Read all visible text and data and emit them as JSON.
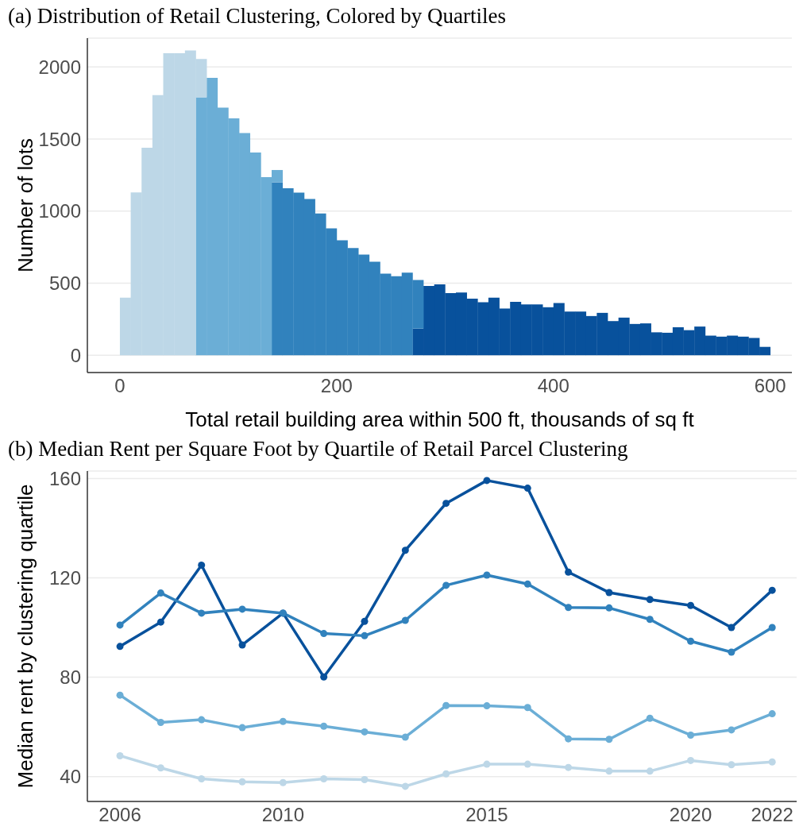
{
  "chart_data": [
    {
      "type": "bar",
      "title": "(a)  Distribution of Retail Clustering, Colored by Quartiles",
      "xlabel": "Total retail building area within 500 ft, thousands of sq ft",
      "ylabel": "Number of lots",
      "stacked": true,
      "x": [
        5,
        15,
        25,
        35,
        45,
        55,
        65,
        75,
        85,
        95,
        105,
        115,
        125,
        135,
        145,
        155,
        165,
        175,
        185,
        195,
        205,
        215,
        225,
        235,
        245,
        255,
        265,
        275,
        285,
        295,
        305,
        315,
        325,
        335,
        345,
        355,
        365,
        375,
        385,
        395,
        405,
        415,
        425,
        435,
        445,
        455,
        465,
        475,
        485,
        495,
        505,
        515,
        525,
        535,
        545,
        555,
        565,
        575,
        585,
        595
      ],
      "series": [
        {
          "color": "#08519c",
          "values": [
            0,
            0,
            0,
            0,
            0,
            0,
            0,
            0,
            0,
            0,
            0,
            0,
            0,
            0,
            0,
            0,
            0,
            0,
            0,
            0,
            0,
            0,
            0,
            0,
            0,
            0,
            0,
            185,
            480,
            491,
            431,
            435,
            393,
            368,
            400,
            324,
            371,
            353,
            353,
            333,
            362,
            303,
            303,
            272,
            294,
            237,
            261,
            217,
            221,
            159,
            156,
            194,
            174,
            199,
            136,
            129,
            136,
            129,
            120,
            58
          ]
        },
        {
          "color": "#3182bd",
          "values": [
            0,
            0,
            0,
            0,
            0,
            0,
            0,
            0,
            0,
            0,
            0,
            0,
            0,
            0,
            1200,
            1158,
            1128,
            1084,
            983,
            880,
            797,
            744,
            698,
            649,
            566,
            548,
            573,
            337,
            0,
            0,
            0,
            0,
            0,
            0,
            0,
            0,
            0,
            0,
            0,
            0,
            0,
            0,
            0,
            0,
            0,
            0,
            0,
            0,
            0,
            0,
            0,
            0,
            0,
            0,
            0,
            0,
            0,
            0,
            0,
            0
          ]
        },
        {
          "color": "#6baed6",
          "values": [
            0,
            0,
            0,
            0,
            0,
            0,
            0,
            1790,
            1925,
            1718,
            1643,
            1541,
            1406,
            1236,
            85,
            0,
            0,
            0,
            0,
            0,
            0,
            0,
            0,
            0,
            0,
            0,
            0,
            0,
            0,
            0,
            0,
            0,
            0,
            0,
            0,
            0,
            0,
            0,
            0,
            0,
            0,
            0,
            0,
            0,
            0,
            0,
            0,
            0,
            0,
            0,
            0,
            0,
            0,
            0,
            0,
            0,
            0,
            0,
            0,
            0
          ]
        },
        {
          "color": "#bdd7e7",
          "values": [
            400,
            1130,
            1440,
            1805,
            2095,
            2095,
            2115,
            265,
            0,
            0,
            0,
            0,
            0,
            0,
            0,
            0,
            0,
            0,
            0,
            0,
            0,
            0,
            0,
            0,
            0,
            0,
            0,
            0,
            0,
            0,
            0,
            0,
            0,
            0,
            0,
            0,
            0,
            0,
            0,
            0,
            0,
            0,
            0,
            0,
            0,
            0,
            0,
            0,
            0,
            0,
            0,
            0,
            0,
            0,
            0,
            0,
            0,
            0,
            0,
            0
          ]
        }
      ],
      "xlim": [
        -30,
        620
      ],
      "xticks": [
        0,
        200,
        400,
        600
      ],
      "ylim": [
        -120,
        2200
      ],
      "yticks": [
        0,
        500,
        1000,
        1500,
        2000
      ],
      "grid": "y"
    },
    {
      "type": "line",
      "title": "(b)  Median Rent per Square Foot by Quartile of Retail Parcel Clustering",
      "ylabel": "Median rent by clustering quartile",
      "x": [
        2006,
        2007,
        2008,
        2009,
        2010,
        2011,
        2012,
        2013,
        2014,
        2015,
        2016,
        2017,
        2018,
        2019,
        2020,
        2021,
        2022
      ],
      "series": [
        {
          "color": "#08519c",
          "values": [
            92.4,
            102.2,
            125.1,
            93.0,
            105.8,
            80.1,
            102.5,
            131.1,
            150.0,
            159.2,
            156.1,
            122.3,
            114.1,
            111.3,
            108.9,
            100.0,
            115.0
          ]
        },
        {
          "color": "#3182bd",
          "values": [
            101.0,
            113.9,
            105.8,
            107.4,
            105.8,
            97.6,
            96.7,
            102.9,
            117.0,
            121.1,
            117.5,
            108.1,
            107.9,
            103.3,
            94.5,
            90.1,
            100.0
          ]
        },
        {
          "color": "#6baed6",
          "values": [
            72.8,
            61.8,
            62.9,
            59.7,
            62.2,
            60.3,
            58.0,
            55.9,
            68.6,
            68.5,
            67.8,
            55.2,
            55.0,
            63.5,
            56.7,
            58.8,
            65.3
          ]
        },
        {
          "color": "#bdd7e7",
          "values": [
            48.4,
            43.5,
            39.1,
            37.9,
            37.6,
            39.1,
            38.8,
            36.1,
            41.1,
            45.0,
            45.0,
            43.7,
            42.2,
            42.2,
            46.5,
            44.8,
            45.9
          ]
        }
      ],
      "xlim": [
        2005.2,
        2022.6
      ],
      "xticks": [
        2006,
        2010,
        2015,
        2020,
        2022
      ],
      "ylim": [
        30,
        163
      ],
      "yticks": [
        40,
        80,
        120,
        160
      ],
      "grid": "y",
      "marker": "circle",
      "line_style": "solid"
    }
  ]
}
